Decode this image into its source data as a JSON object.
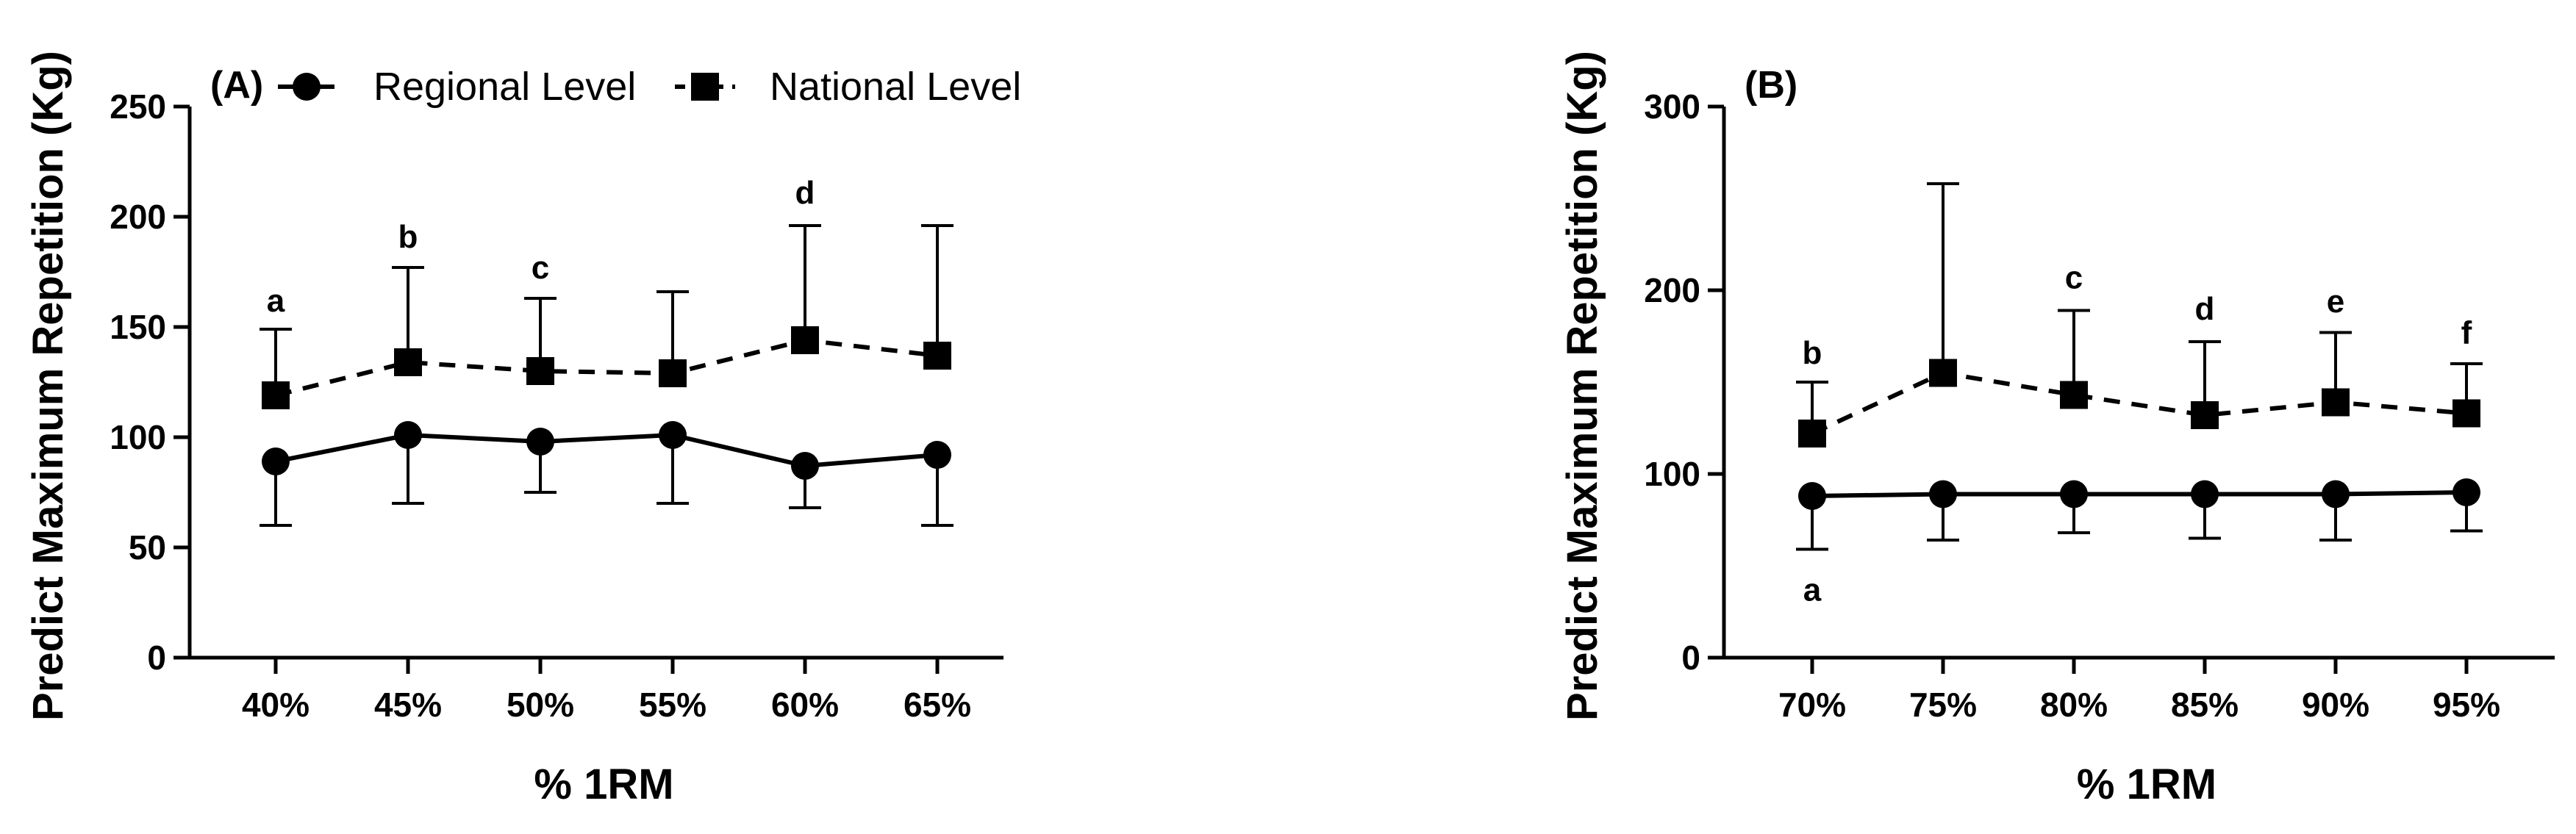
{
  "chart_data": [
    {
      "panel_label": "(A)",
      "type": "line",
      "ylabel": "Predict Maximum Repetition (Kg)",
      "xlabel": "% 1RM",
      "ylim": [
        0,
        250
      ],
      "yticks": [
        0,
        50,
        100,
        150,
        200,
        250
      ],
      "categories": [
        "40%",
        "45%",
        "50%",
        "55%",
        "60%",
        "65%"
      ],
      "legend": {
        "placement": "top",
        "entries": [
          "Regional Level",
          "National Level"
        ]
      },
      "series": [
        {
          "name": "Regional Level",
          "marker": "circle",
          "line": "solid",
          "values": [
            89,
            101,
            98,
            101,
            87,
            92
          ],
          "error_low": [
            60,
            70,
            75,
            70,
            68,
            60
          ]
        },
        {
          "name": "National Level",
          "marker": "square",
          "line": "dashed",
          "values": [
            119,
            134,
            130,
            129,
            144,
            137
          ],
          "error_high": [
            149,
            177,
            163,
            166,
            196,
            196
          ]
        }
      ],
      "annotations": [
        {
          "text": "a",
          "x": "40%",
          "y": 162
        },
        {
          "text": "b",
          "x": "45%",
          "y": 191
        },
        {
          "text": "c",
          "x": "50%",
          "y": 177
        },
        {
          "text": "d",
          "x": "60%",
          "y": 211
        }
      ]
    },
    {
      "panel_label": "(B)",
      "type": "line",
      "ylabel": "Predict Maximum Repetition (Kg)",
      "xlabel": "% 1RM",
      "ylim": [
        0,
        300
      ],
      "yticks": [
        0,
        100,
        200,
        300
      ],
      "categories": [
        "70%",
        "75%",
        "80%",
        "85%",
        "90%",
        "95%"
      ],
      "series": [
        {
          "name": "Regional Level",
          "marker": "circle",
          "line": "solid",
          "values": [
            88,
            89,
            89,
            89,
            89,
            90
          ],
          "error_low": [
            59,
            64,
            68,
            65,
            64,
            69
          ]
        },
        {
          "name": "National Level",
          "marker": "square",
          "line": "dashed",
          "values": [
            122,
            155,
            143,
            132,
            139,
            133
          ],
          "error_high": [
            150,
            258,
            189,
            172,
            177,
            160
          ]
        }
      ],
      "annotations": [
        {
          "text": "b",
          "x": "70%",
          "y": 166
        },
        {
          "text": "a",
          "x": "70%",
          "y": 37
        },
        {
          "text": "c",
          "x": "80%",
          "y": 207
        },
        {
          "text": "d",
          "x": "85%",
          "y": 190
        },
        {
          "text": "e",
          "x": "90%",
          "y": 194
        },
        {
          "text": "f",
          "x": "95%",
          "y": 177
        }
      ]
    }
  ]
}
